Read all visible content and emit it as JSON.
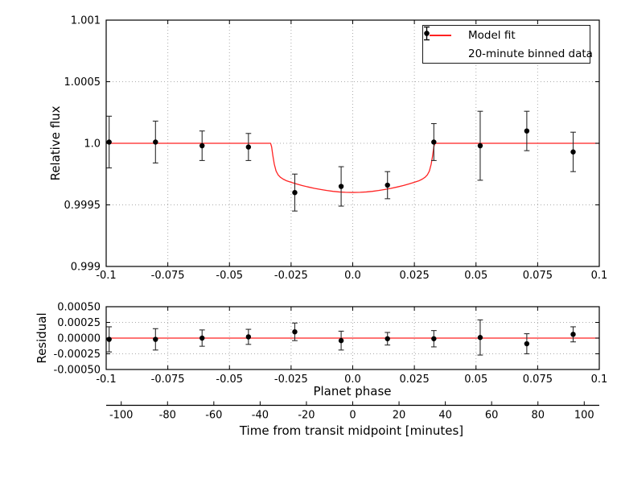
{
  "figure": {
    "colors": {
      "model_red": "#ff2222",
      "marker_black": "#000000",
      "grid_gray": "#ababab",
      "axis_black": "#000000",
      "background": "#ffffff"
    },
    "legend": {
      "items": [
        {
          "label": "Model fit",
          "marker": "red-line"
        },
        {
          "label": "20-minute binned data",
          "marker": "errorbar-points"
        }
      ]
    }
  },
  "chart_data": [
    {
      "type": "line+errorbar",
      "panel": "relative-flux",
      "title": "",
      "xlabel": "",
      "ylabel": "Relative flux",
      "xlim": [
        -0.1,
        0.1
      ],
      "ylim": [
        0.999,
        1.001
      ],
      "grid": true,
      "legend_position": "upper right",
      "xticks": [
        -0.1,
        -0.075,
        -0.05,
        -0.025,
        0.0,
        0.025,
        0.05,
        0.075,
        0.1
      ],
      "xtick_labels": [
        "-0.1",
        "-0.075",
        "-0.05",
        "-0.025",
        "0.0",
        "0.025",
        "0.05",
        "0.075",
        "0.1"
      ],
      "yticks": [
        1.001,
        1.0005,
        1.0,
        0.9995,
        0.999
      ],
      "ytick_labels": [
        "1.001",
        "1.0005",
        "1.0",
        "0.9995",
        "0.999"
      ],
      "series": [
        {
          "name": "Model fit",
          "type": "line",
          "color": "#ff2222",
          "points": [
            [
              -0.1,
              1.0
            ],
            [
              -0.0333,
              1.0
            ],
            [
              -0.0329,
              0.99997
            ],
            [
              -0.0324,
              0.9999
            ],
            [
              -0.0318,
              0.99983
            ],
            [
              -0.0311,
              0.999775
            ],
            [
              -0.0303,
              0.999745
            ],
            [
              -0.0294,
              0.999725
            ],
            [
              -0.0283,
              0.99971
            ],
            [
              -0.0268,
              0.999695
            ],
            [
              -0.0248,
              0.999682
            ],
            [
              -0.0228,
              0.99967
            ],
            [
              -0.0205,
              0.999657
            ],
            [
              -0.018,
              0.999645
            ],
            [
              -0.0155,
              0.999634
            ],
            [
              -0.013,
              0.999625
            ],
            [
              -0.0105,
              0.999617
            ],
            [
              -0.008,
              0.99961
            ],
            [
              -0.0055,
              0.999605
            ],
            [
              -0.003,
              0.999602
            ],
            [
              0.0,
              0.999601
            ],
            [
              0.003,
              0.999602
            ],
            [
              0.0055,
              0.999605
            ],
            [
              0.008,
              0.99961
            ],
            [
              0.0105,
              0.999617
            ],
            [
              0.013,
              0.999625
            ],
            [
              0.0155,
              0.999634
            ],
            [
              0.018,
              0.999645
            ],
            [
              0.0205,
              0.999657
            ],
            [
              0.0228,
              0.99967
            ],
            [
              0.0248,
              0.999682
            ],
            [
              0.0268,
              0.999695
            ],
            [
              0.0283,
              0.99971
            ],
            [
              0.0294,
              0.999725
            ],
            [
              0.0303,
              0.999745
            ],
            [
              0.0311,
              0.999775
            ],
            [
              0.0318,
              0.99983
            ],
            [
              0.0324,
              0.9999
            ],
            [
              0.0329,
              0.99997
            ],
            [
              0.0333,
              1.0
            ],
            [
              0.1,
              1.0
            ]
          ]
        },
        {
          "name": "20-minute binned data",
          "type": "errorbar",
          "color": "#000000",
          "x": [
            -0.0988,
            -0.08,
            -0.0611,
            -0.0423,
            -0.0235,
            -0.0047,
            0.0141,
            0.0329,
            0.0517,
            0.0706,
            0.0894
          ],
          "y": [
            1.00001,
            1.00001,
            0.99998,
            0.99997,
            0.9996,
            0.99965,
            0.99966,
            1.00001,
            0.99998,
            1.0001,
            0.99993
          ],
          "yerr": [
            0.00021,
            0.00017,
            0.00012,
            0.00011,
            0.00015,
            0.00016,
            0.00011,
            0.00015,
            0.00028,
            0.00016,
            0.00016
          ]
        }
      ]
    },
    {
      "type": "line+errorbar",
      "panel": "residual",
      "title": "",
      "xlabel": "Planet phase",
      "ylabel": "Residual",
      "xlim": [
        -0.1,
        0.1
      ],
      "ylim": [
        -0.0005,
        0.0005
      ],
      "grid": true,
      "xticks": [
        -0.1,
        -0.075,
        -0.05,
        -0.025,
        0.0,
        0.025,
        0.05,
        0.075,
        0.1
      ],
      "xtick_labels": [
        "-0.1",
        "-0.075",
        "-0.05",
        "-0.025",
        "0.0",
        "0.025",
        "0.05",
        "0.075",
        "0.1"
      ],
      "yticks": [
        0.0005,
        0.00025,
        0.0,
        -0.00025,
        -0.0005
      ],
      "ytick_labels": [
        "0.00050",
        "0.00025",
        "0.00000",
        "-0.00025",
        "-0.00050"
      ],
      "series": [
        {
          "name": "zero line",
          "type": "line",
          "color": "#ff2222",
          "points": [
            [
              -0.1,
              0.0
            ],
            [
              0.1,
              0.0
            ]
          ]
        },
        {
          "name": "residuals",
          "type": "errorbar",
          "color": "#000000",
          "x": [
            -0.0988,
            -0.08,
            -0.0611,
            -0.0423,
            -0.0235,
            -0.0047,
            0.0141,
            0.0329,
            0.0517,
            0.0706,
            0.0894
          ],
          "y": [
            -2e-05,
            -2e-05,
            0.0,
            2e-05,
            0.0001,
            -4e-05,
            -1e-05,
            -1e-05,
            1e-05,
            -9e-05,
            6e-05
          ],
          "yerr": [
            0.0002,
            0.00017,
            0.00013,
            0.00012,
            0.00014,
            0.00015,
            0.0001,
            0.00013,
            0.00028,
            0.00016,
            0.00012
          ]
        }
      ]
    },
    {
      "type": "axis",
      "panel": "time-axis",
      "xlabel": "Time from transit midpoint [minutes]",
      "xlim": [
        -106.5,
        106.5
      ],
      "xticks": [
        -100,
        -80,
        -60,
        -40,
        -20,
        0,
        20,
        40,
        60,
        80,
        100
      ],
      "xtick_labels": [
        "-100",
        "-80",
        "-60",
        "-40",
        "-20",
        "0",
        "20",
        "40",
        "60",
        "80",
        "100"
      ]
    }
  ]
}
